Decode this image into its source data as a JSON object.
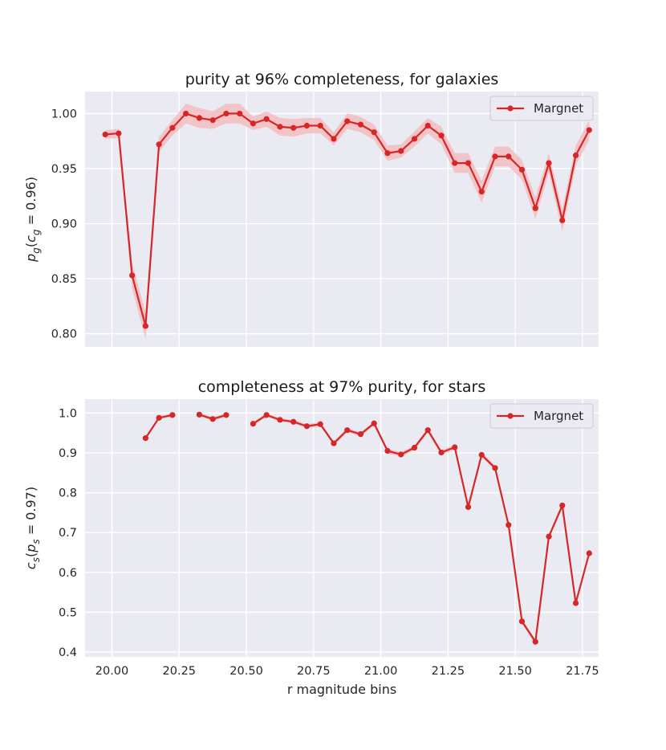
{
  "chart_data": [
    {
      "type": "line",
      "title": "purity at 96% completeness, for galaxies",
      "xlabel": "",
      "ylabel": "p_g(c_g = 0.96)",
      "ylabel_main": "p",
      "ylabel_sub": "g",
      "ylabel_paren_open": "(",
      "ylabel_inner": "c",
      "ylabel_inner_sub": "g",
      "ylabel_rest": " = 0.96)",
      "xlim": [
        19.9,
        21.81
      ],
      "ylim": [
        0.788,
        1.02
      ],
      "xticks": [
        20.0,
        20.25,
        20.5,
        20.75,
        21.0,
        21.25,
        21.5,
        21.75
      ],
      "xtick_labels_visible": false,
      "yticks": [
        0.8,
        0.85,
        0.9,
        0.95,
        1.0
      ],
      "ytick_labels": [
        "0.80",
        "0.85",
        "0.90",
        "0.95",
        "1.00"
      ],
      "grid": true,
      "legend": "top-right",
      "series": [
        {
          "name": "Margnet",
          "color": "#d62728",
          "band_color": "#f4b6b8",
          "x": [
            19.975,
            20.025,
            20.075,
            20.125,
            20.175,
            20.225,
            20.275,
            20.325,
            20.375,
            20.425,
            20.475,
            20.525,
            20.575,
            20.625,
            20.675,
            20.725,
            20.775,
            20.825,
            20.875,
            20.925,
            20.975,
            21.025,
            21.075,
            21.125,
            21.175,
            21.225,
            21.275,
            21.325,
            21.375,
            21.425,
            21.475,
            21.525,
            21.575,
            21.625,
            21.675,
            21.725,
            21.775
          ],
          "y": [
            0.981,
            0.982,
            0.853,
            0.807,
            0.972,
            0.987,
            1.0,
            0.996,
            0.994,
            1.0,
            1.0,
            0.991,
            0.995,
            0.988,
            0.987,
            0.989,
            0.989,
            0.977,
            0.993,
            0.99,
            0.983,
            0.964,
            0.966,
            0.977,
            0.989,
            0.98,
            0.955,
            0.955,
            0.929,
            0.961,
            0.961,
            0.949,
            0.914,
            0.955,
            0.903,
            0.962,
            0.985
          ],
          "err": [
            0.004,
            0.004,
            0.012,
            0.012,
            0.007,
            0.007,
            0.009,
            0.009,
            0.008,
            0.009,
            0.009,
            0.006,
            0.007,
            0.008,
            0.008,
            0.007,
            0.007,
            0.006,
            0.007,
            0.007,
            0.007,
            0.007,
            0.006,
            0.007,
            0.007,
            0.008,
            0.009,
            0.009,
            0.01,
            0.009,
            0.009,
            0.009,
            0.01,
            0.009,
            0.01,
            0.009,
            0.009
          ]
        }
      ]
    },
    {
      "type": "line",
      "title": "completeness at 97% purity, for stars",
      "xlabel": "r magnitude bins",
      "ylabel": "c_s(p_s = 0.97)",
      "ylabel_main": "c",
      "ylabel_sub": "s",
      "ylabel_paren_open": "(",
      "ylabel_inner": "p",
      "ylabel_inner_sub": "s",
      "ylabel_rest": " = 0.97)",
      "xlim": [
        19.9,
        21.81
      ],
      "ylim": [
        0.388,
        1.035
      ],
      "xticks": [
        20.0,
        20.25,
        20.5,
        20.75,
        21.0,
        21.25,
        21.5,
        21.75
      ],
      "xtick_labels": [
        "20.00",
        "20.25",
        "20.50",
        "20.75",
        "21.00",
        "21.25",
        "21.50",
        "21.75"
      ],
      "yticks": [
        0.4,
        0.5,
        0.6,
        0.7,
        0.8,
        0.9,
        1.0
      ],
      "ytick_labels": [
        "0.4",
        "0.5",
        "0.6",
        "0.7",
        "0.8",
        "0.9",
        "1.0"
      ],
      "grid": true,
      "legend": "top-right",
      "series": [
        {
          "name": "Margnet",
          "color": "#d62728",
          "band_color": "#f4b6b8",
          "x": [
            19.975,
            20.025,
            20.075,
            20.125,
            20.175,
            20.225,
            20.275,
            20.325,
            20.375,
            20.425,
            20.475,
            20.525,
            20.575,
            20.625,
            20.675,
            20.725,
            20.775,
            20.825,
            20.875,
            20.925,
            20.975,
            21.025,
            21.075,
            21.125,
            21.175,
            21.225,
            21.275,
            21.325,
            21.375,
            21.425,
            21.475,
            21.525,
            21.575,
            21.625,
            21.675,
            21.725,
            21.775
          ],
          "y": [
            null,
            null,
            null,
            0.937,
            0.988,
            0.995,
            null,
            0.996,
            0.985,
            0.995,
            null,
            0.973,
            0.995,
            0.983,
            0.978,
            0.967,
            0.972,
            0.924,
            0.957,
            0.947,
            0.974,
            0.905,
            0.896,
            0.913,
            0.957,
            0.901,
            0.914,
            0.764,
            0.895,
            0.862,
            0.719,
            0.477,
            0.426,
            0.69,
            0.768,
            0.523,
            0.648
          ],
          "err": [
            null,
            null,
            null,
            0.004,
            0.004,
            0.004,
            null,
            0.004,
            0.005,
            0.004,
            null,
            0.005,
            0.004,
            0.004,
            0.004,
            0.005,
            0.005,
            0.005,
            0.005,
            0.005,
            0.005,
            0.006,
            0.006,
            0.006,
            0.006,
            0.006,
            0.006,
            0.006,
            0.006,
            0.006,
            0.006,
            0.006,
            0.006,
            0.006,
            0.006,
            0.006,
            0.006
          ]
        }
      ]
    }
  ]
}
